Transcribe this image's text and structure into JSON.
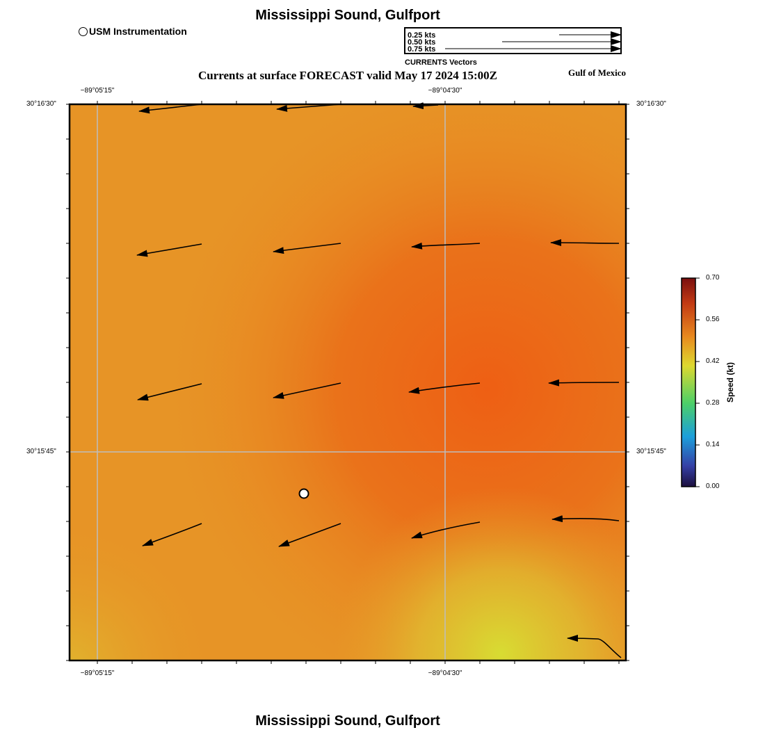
{
  "map": {
    "title": "Mississippi Sound, Gulfport",
    "bottom_title": "Mississippi Sound, Gulfport",
    "subtitle": "Currents at surface FORECAST valid May 17 2024 15:00Z",
    "region_label": "Gulf of Mexico",
    "instrument_legend": "USM Instrumentation",
    "grid_labels": {
      "lon_left": "−89°05'15\"",
      "lon_right": "−89°04'30\"",
      "lat_top": "30°16'30\"",
      "lat_middle": "30°15'45\""
    }
  },
  "vector_legend": {
    "title": "CURRENTS Vectors",
    "entries": [
      {
        "label": "0.25 kts",
        "speed_kt": 0.25
      },
      {
        "label": "0.50 kts",
        "speed_kt": 0.5
      },
      {
        "label": "0.75 kts",
        "speed_kt": 0.75
      }
    ]
  },
  "colorbar": {
    "title": "Speed (kt)",
    "ticks": [
      "0.70",
      "0.56",
      "0.42",
      "0.28",
      "0.14",
      "0.00"
    ],
    "colors": [
      "#7a0f0f",
      "#c23a14",
      "#e8891f",
      "#ddd82f",
      "#4ccf68",
      "#1c9fdb",
      "#3540a6",
      "#1c0f3e"
    ]
  },
  "field_colors": {
    "base": "#e79426",
    "core": "#ee5f14",
    "low": "#d8dc32"
  }
}
